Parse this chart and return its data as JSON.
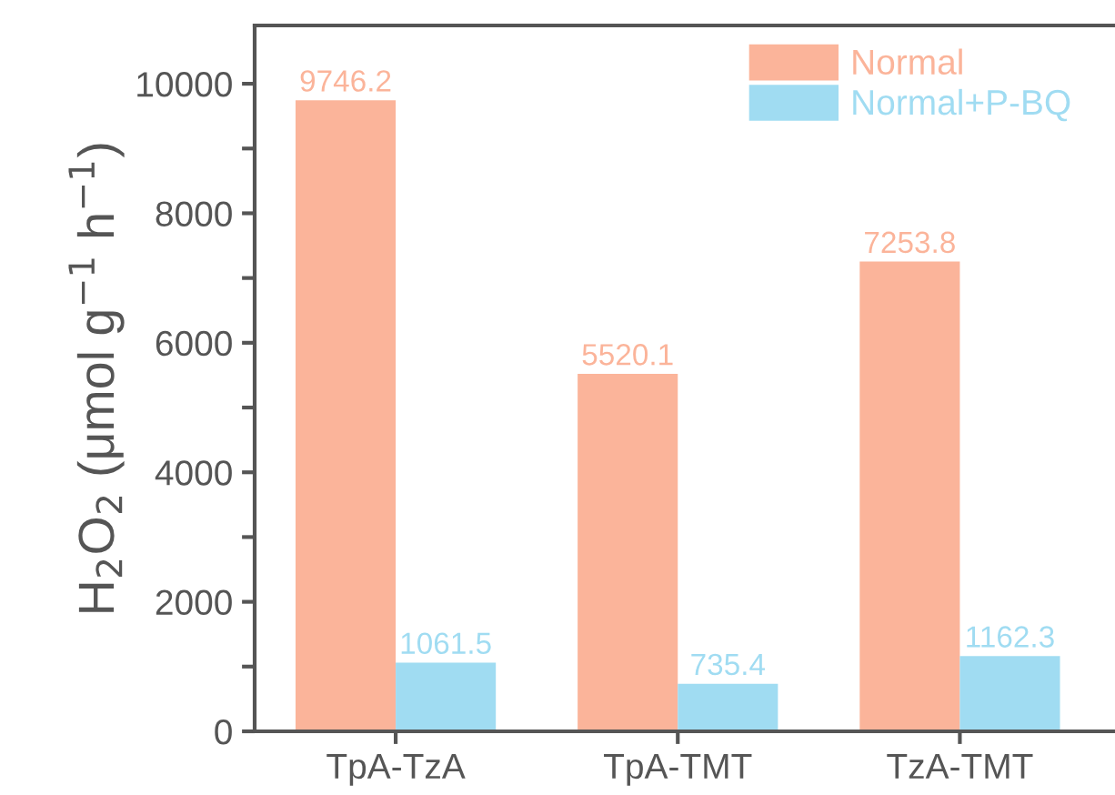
{
  "chart_data": {
    "type": "bar",
    "ylabel": "H$_{2}$O$_{2}$ (μmol g$^{−1}$ h$^{−1}$)",
    "categories": [
      "TpA-TzA",
      "TpA-TMT",
      "TzA-TMT"
    ],
    "series": [
      {
        "name": "Normal",
        "color": "#fbb49a",
        "values": [
          9746.2,
          5520.1,
          7253.8
        ]
      },
      {
        "name": "Normal+P-BQ",
        "color": "#a0dcf2",
        "values": [
          1061.5,
          735.4,
          1162.3
        ]
      }
    ],
    "ylim": [
      0,
      10900
    ],
    "yticks": [
      0,
      {
        "value": 1000,
        "label": null
      },
      2000,
      {
        "value": 3000,
        "label": null
      },
      4000,
      {
        "value": 5000,
        "label": null
      },
      6000,
      {
        "value": 7000,
        "label": null
      },
      8000,
      {
        "value": 9000,
        "label": null
      },
      10000
    ],
    "data_labels": true,
    "legend": "top right",
    "grid": false
  }
}
